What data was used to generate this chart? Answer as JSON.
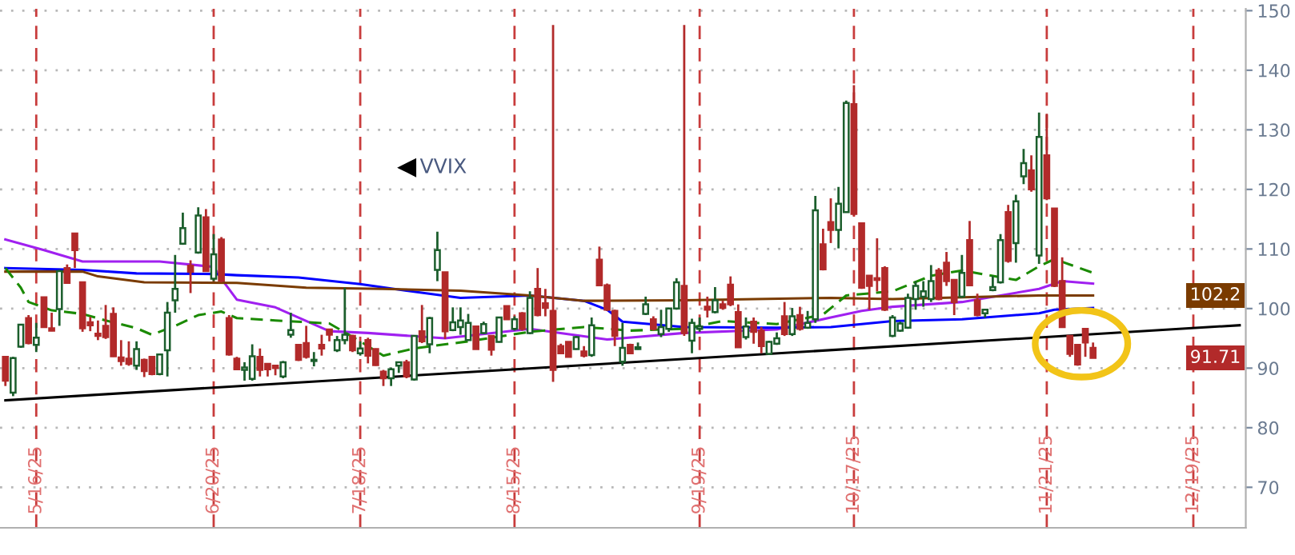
{
  "chart_data": {
    "type": "candlestick",
    "annotations": [
      "VVIX",
      {
        "text": "102.2",
        "y": 102.2
      },
      {
        "text": "91.71",
        "y": 91.71
      }
    ],
    "categories": [
      null,
      null,
      null,
      null,
      "5/16/25",
      null,
      null,
      null,
      null,
      null,
      null,
      null,
      null,
      null,
      null,
      null,
      null,
      null,
      null,
      null,
      null,
      null,
      null,
      null,
      null,
      null,
      null,
      "6/20/25",
      null,
      null,
      null,
      null,
      null,
      null,
      null,
      null,
      null,
      null,
      null,
      null,
      null,
      null,
      null,
      null,
      null,
      null,
      "7/18/25",
      null,
      null,
      null,
      null,
      null,
      null,
      null,
      null,
      null,
      null,
      null,
      null,
      null,
      null,
      null,
      null,
      null,
      null,
      null,
      "8/15/25",
      null,
      null,
      null,
      null,
      null,
      null,
      null,
      null,
      null,
      null,
      null,
      null,
      null,
      null,
      null,
      null,
      null,
      null,
      null,
      null,
      null,
      null,
      null,
      "9/19/25",
      null,
      null,
      null,
      null,
      null,
      null,
      null,
      null,
      null,
      null,
      null,
      null,
      null,
      null,
      null,
      null,
      null,
      null,
      null,
      "10/17/25",
      null,
      null,
      null,
      null,
      null,
      null,
      null,
      null,
      null,
      null,
      null,
      null,
      null,
      null,
      null,
      null,
      null,
      null,
      null,
      null,
      null,
      null,
      null,
      null,
      "11/21/25",
      null,
      null,
      null,
      null,
      null,
      null,
      null,
      null,
      null,
      null,
      null,
      null,
      null,
      null,
      null,
      null,
      null,
      null,
      "12/19/25",
      null,
      null,
      null,
      null,
      null,
      null
    ],
    "ylim": [
      63.2,
      150.3
    ],
    "yticks": [
      70,
      80,
      90,
      100,
      110,
      120,
      130,
      140,
      150
    ],
    "grid": true,
    "tick_labels": "xy",
    "series": [
      {
        "type": "line",
        "color": "#a020f0",
        "line_style": "solid",
        "values": [
          111.6,
          null,
          null,
          null,
          null,
          109.8,
          null,
          null,
          null,
          null,
          107.9,
          null,
          null,
          null,
          null,
          null,
          null,
          null,
          null,
          null,
          107.9,
          null,
          null,
          null,
          null,
          null,
          null,
          107,
          105,
          null,
          101.5,
          null,
          null,
          null,
          null,
          100.2,
          null,
          null,
          null,
          null,
          null,
          null,
          96.2,
          null,
          null,
          null,
          null,
          95.9,
          null,
          null,
          null,
          null,
          null,
          null,
          null,
          null,
          null,
          95,
          null,
          null,
          null,
          null,
          null,
          null,
          null,
          null,
          null,
          null,
          96.6,
          null,
          null,
          null,
          null,
          null,
          null,
          null,
          null,
          null,
          94.8,
          null,
          null,
          null,
          null,
          null,
          null,
          null,
          null,
          null,
          95.9,
          null,
          null,
          null,
          null,
          null,
          null,
          null,
          null,
          null,
          null,
          null,
          96.5,
          null,
          null,
          null,
          null,
          null,
          null,
          98.5,
          null,
          null,
          null,
          99.6,
          null,
          null,
          null,
          100.3,
          null,
          null,
          null,
          null,
          null,
          null,
          null,
          null,
          101.1,
          null,
          null,
          null,
          null,
          null,
          null,
          null,
          null,
          null,
          103.3,
          null,
          null,
          104.6,
          null,
          null,
          null,
          104.2,
          null,
          null,
          null,
          null,
          null,
          null,
          null,
          null,
          null,
          null,
          null,
          null,
          null,
          null,
          null,
          null,
          null,
          null,
          null
        ]
      },
      {
        "type": "line",
        "color": "#0000ff",
        "line_style": "solid",
        "values": [
          106.8,
          null,
          null,
          null,
          null,
          null,
          null,
          null,
          null,
          null,
          106.5,
          null,
          null,
          null,
          null,
          null,
          null,
          105.9,
          null,
          null,
          null,
          null,
          null,
          null,
          null,
          null,
          null,
          105.8,
          null,
          null,
          105.6,
          null,
          null,
          null,
          null,
          null,
          null,
          null,
          105.2,
          null,
          null,
          null,
          null,
          null,
          null,
          null,
          104.1,
          null,
          null,
          null,
          null,
          null,
          103,
          null,
          null,
          null,
          null,
          null,
          null,
          101.8,
          null,
          null,
          null,
          null,
          null,
          null,
          null,
          null,
          102.2,
          null,
          null,
          null,
          null,
          null,
          null,
          101.3,
          null,
          null,
          99.8,
          null,
          97.8,
          null,
          null,
          null,
          null,
          null,
          null,
          null,
          96.9,
          null,
          null,
          null,
          null,
          null,
          null,
          null,
          null,
          null,
          null,
          null,
          96.8,
          null,
          null,
          null,
          null,
          null,
          null,
          96.9,
          null,
          null,
          null,
          null,
          null,
          null,
          null,
          97.9,
          null,
          null,
          null,
          null,
          null,
          null,
          null,
          null,
          98.2,
          null,
          null,
          null,
          null,
          null,
          null,
          null,
          null,
          null,
          99.2,
          null,
          99.8,
          null,
          null,
          null,
          null,
          100.1,
          null,
          null,
          null,
          null,
          null,
          null,
          null,
          null,
          null,
          null,
          null,
          null,
          null,
          null,
          null,
          null,
          null,
          null,
          null
        ]
      },
      {
        "type": "line",
        "color": "#7a3b00",
        "line_style": "solid",
        "values": [
          106.2,
          null,
          null,
          null,
          null,
          null,
          null,
          null,
          null,
          null,
          106.2,
          null,
          105.4,
          null,
          null,
          null,
          null,
          null,
          104.4,
          null,
          null,
          null,
          null,
          null,
          null,
          null,
          null,
          null,
          null,
          null,
          104.3,
          null,
          null,
          null,
          null,
          null,
          null,
          null,
          null,
          103.5,
          null,
          null,
          null,
          null,
          null,
          null,
          null,
          null,
          null,
          103.3,
          null,
          null,
          null,
          null,
          null,
          null,
          null,
          null,
          null,
          103,
          null,
          null,
          null,
          null,
          null,
          null,
          null,
          null,
          102.2,
          null,
          null,
          null,
          null,
          null,
          null,
          101.3,
          null,
          null,
          null,
          null,
          null,
          null,
          null,
          null,
          null,
          null,
          null,
          null,
          101.4,
          null,
          null,
          null,
          null,
          null,
          null,
          null,
          null,
          null,
          null,
          null,
          null,
          null,
          null,
          null,
          null,
          null,
          null,
          101.8,
          null,
          null,
          null,
          null,
          null,
          null,
          null,
          101.6,
          null,
          null,
          null,
          null,
          null,
          null,
          null,
          null,
          null,
          null,
          null,
          null,
          null,
          null,
          null,
          null,
          null,
          null,
          102.2,
          null,
          null,
          null,
          null,
          null,
          null,
          102.2,
          null,
          null,
          null,
          null,
          null,
          null,
          null,
          null,
          null,
          null,
          null,
          null,
          null,
          null,
          null,
          null,
          null,
          null,
          null
        ]
      },
      {
        "type": "line",
        "color": "#1a8a00",
        "line_style": "dashed",
        "values": [
          106.8,
          null,
          103.5,
          101.1,
          null,
          null,
          99.7,
          null,
          null,
          null,
          99.1,
          null,
          null,
          98,
          null,
          null,
          null,
          96.7,
          null,
          95.6,
          null,
          null,
          97.1,
          null,
          null,
          98.9,
          null,
          null,
          99.5,
          null,
          98.4,
          null,
          null,
          null,
          null,
          98,
          null,
          null,
          null,
          null,
          null,
          null,
          97.5,
          null,
          null,
          null,
          94.5,
          null,
          null,
          92.1,
          null,
          null,
          null,
          93.3,
          null,
          null,
          null,
          null,
          null,
          null,
          94.5,
          null,
          null,
          null,
          null,
          null,
          null,
          null,
          96.1,
          null,
          null,
          null,
          null,
          null,
          null,
          96.9,
          null,
          null,
          null,
          null,
          null,
          96.3,
          null,
          null,
          null,
          null,
          null,
          null,
          96.6,
          null,
          null,
          null,
          null,
          97.9,
          null,
          null,
          null,
          null,
          null,
          null,
          97.4,
          null,
          null,
          null,
          null,
          null,
          99,
          null,
          null,
          102.2,
          null,
          null,
          null,
          null,
          null,
          102.9,
          null,
          null,
          null,
          null,
          105.5,
          null,
          null,
          null,
          106.4,
          null,
          null,
          null,
          null,
          null,
          null,
          104.8,
          null,
          null,
          107.1,
          null,
          108.3,
          null,
          null,
          null,
          null,
          106,
          null,
          null,
          null,
          null,
          null,
          null,
          null,
          null,
          null,
          null,
          null,
          null,
          null,
          null,
          null,
          null,
          null,
          null,
          null
        ]
      },
      {
        "type": "line",
        "color": "#000000",
        "line_style": "solid",
        "values": [
          84.6,
          null,
          null,
          null,
          null,
          null,
          null,
          null,
          null,
          null,
          null,
          null,
          null,
          null,
          null,
          null,
          null,
          null,
          null,
          null,
          null,
          null,
          null,
          null,
          null,
          null,
          null,
          null,
          null,
          null,
          null,
          null,
          null,
          null,
          null,
          null,
          null,
          null,
          null,
          null,
          null,
          null,
          null,
          null,
          null,
          null,
          null,
          null,
          null,
          null,
          null,
          null,
          null,
          null,
          null,
          null,
          null,
          null,
          null,
          null,
          null,
          null,
          null,
          null,
          null,
          null,
          null,
          null,
          null,
          null,
          null,
          null,
          null,
          null,
          null,
          null,
          null,
          null,
          null,
          null,
          null,
          null,
          null,
          null,
          null,
          null,
          null,
          null,
          null,
          null,
          null,
          null,
          null,
          null,
          null,
          null,
          null,
          null,
          null,
          null,
          null,
          null,
          null,
          null,
          null,
          null,
          null,
          null,
          null,
          null,
          null,
          null,
          null,
          null,
          null,
          null,
          null,
          null,
          null,
          null,
          null,
          null,
          null,
          null,
          null,
          null,
          null,
          null,
          null,
          null,
          null,
          null,
          null,
          null,
          null,
          null,
          null,
          null,
          null,
          null,
          null,
          null,
          null,
          null,
          null,
          null,
          null,
          null,
          null,
          null,
          null,
          null,
          null,
          null,
          null,
          null,
          null,
          null,
          null,
          null,
          97.2
        ]
      },
      {
        "ohlc": [
          [
            91.9,
            91.9,
            87.0,
            87.9
          ],
          [
            85.9,
            91.9,
            85.3,
            91.7
          ],
          [
            93.6,
            97.3,
            93.4,
            97.3
          ],
          [
            98.4,
            98.9,
            94.0,
            94.2
          ],
          [
            93.9,
            97.6,
            92.7,
            95.1
          ],
          [
            101.9,
            101.9,
            96.9,
            96.9
          ],
          [
            96.7,
            99.3,
            96.2,
            96.3
          ],
          [
            99.9,
            106.5,
            97.1,
            106.3
          ],
          [
            106.8,
            107.4,
            104.3,
            104.3
          ],
          [
            112.6,
            112.6,
            106.8,
            109.8
          ],
          [
            104.4,
            104.4,
            96.1,
            96.7
          ],
          [
            97.7,
            98.6,
            96.2,
            97.2
          ],
          [
            95.8,
            98.0,
            94.7,
            95.4
          ],
          [
            97.1,
            100.6,
            94.9,
            95.2
          ],
          [
            99.1,
            100.2,
            91.9,
            92.0
          ],
          [
            91.8,
            94.7,
            90.4,
            91.2
          ],
          [
            91.6,
            94.5,
            90.4,
            90.7
          ],
          [
            90.4,
            94.5,
            89.7,
            93.2
          ],
          [
            91.4,
            91.6,
            88.5,
            89.5
          ],
          [
            91.9,
            92.0,
            88.8,
            89.0
          ],
          [
            89.0,
            92.3,
            88.8,
            92.3
          ],
          [
            93.0,
            101.1,
            88.6,
            99.3
          ],
          [
            101.4,
            109.0,
            99.3,
            103.3
          ],
          [
            110.9,
            116.1,
            110.7,
            113.5
          ],
          [
            107.2,
            108.1,
            102.6,
            106.2
          ],
          [
            109.4,
            117.0,
            109.2,
            115.6
          ],
          [
            115.3,
            116.7,
            106.2,
            106.3
          ],
          [
            105.0,
            112.5,
            104.6,
            109.1
          ],
          [
            111.6,
            112.0,
            104.4,
            104.7
          ],
          [
            98.4,
            98.9,
            92.1,
            92.3
          ],
          [
            91.6,
            91.9,
            89.7,
            89.8
          ],
          [
            89.7,
            91.0,
            87.9,
            90.1
          ],
          [
            88.2,
            94.0,
            87.9,
            92.0
          ],
          [
            91.9,
            93.3,
            88.6,
            89.7
          ],
          [
            90.7,
            90.7,
            88.6,
            89.8
          ],
          [
            90.4,
            90.5,
            88.8,
            90.0
          ],
          [
            88.6,
            91.2,
            88.3,
            91.0
          ],
          [
            95.6,
            99.3,
            95.1,
            96.4
          ],
          [
            93.9,
            93.9,
            91.2,
            91.4
          ],
          [
            94.2,
            97.1,
            91.6,
            91.9
          ],
          [
            91.2,
            92.7,
            90.3,
            91.4
          ],
          [
            93.9,
            95.6,
            92.1,
            93.3
          ],
          [
            96.5,
            96.5,
            94.5,
            95.6
          ],
          [
            93.0,
            95.4,
            92.7,
            94.7
          ],
          [
            94.7,
            103.5,
            94.0,
            95.6
          ],
          [
            95.4,
            95.6,
            92.7,
            93.0
          ],
          [
            92.5,
            94.5,
            92.1,
            93.3
          ],
          [
            94.7,
            95.1,
            90.8,
            92.1
          ],
          [
            93.2,
            93.3,
            90.4,
            90.5
          ],
          [
            89.4,
            89.7,
            87.0,
            88.3
          ],
          [
            88.3,
            90.1,
            87.0,
            89.8
          ],
          [
            90.4,
            91.0,
            89.2,
            91.0
          ],
          [
            91.0,
            91.4,
            88.3,
            88.6
          ],
          [
            88.1,
            95.4,
            87.9,
            95.4
          ],
          [
            96.2,
            100.6,
            94.2,
            94.5
          ],
          [
            94.0,
            98.6,
            92.5,
            98.4
          ],
          [
            106.5,
            112.9,
            104.6,
            109.8
          ],
          [
            106.1,
            106.1,
            94.9,
            96.2
          ],
          [
            96.4,
            100.2,
            96.2,
            97.7
          ],
          [
            96.9,
            100.2,
            95.6,
            98.0
          ],
          [
            94.7,
            99.1,
            94.6,
            97.6
          ],
          [
            97.0,
            97.0,
            93.2,
            93.2
          ],
          [
            95.9,
            97.8,
            95.7,
            97.4
          ],
          [
            95.4,
            95.4,
            92.1,
            93.1
          ],
          [
            94.4,
            98.5,
            94.3,
            98.5
          ],
          [
            100.4,
            100.4,
            98.1,
            98.2
          ],
          [
            96.6,
            98.7,
            96.3,
            98.2
          ],
          [
            99.2,
            99.4,
            96.3,
            96.6
          ],
          [
            95.9,
            102.9,
            95.7,
            101.8
          ],
          [
            103.3,
            106.8,
            98.7,
            98.9
          ],
          [
            100.9,
            103.3,
            98.7,
            100.1
          ],
          [
            99.6,
            147.6,
            87.7,
            89.7
          ],
          [
            93.7,
            94.1,
            92.4,
            92.5
          ],
          [
            94.4,
            94.4,
            91.8,
            91.9
          ],
          [
            93.2,
            95.4,
            93.1,
            95.2
          ],
          [
            92.8,
            93.7,
            91.8,
            92.1
          ],
          [
            92.2,
            98.5,
            91.9,
            97.2
          ],
          [
            108.2,
            110.4,
            103.8,
            103.9
          ],
          [
            103.9,
            104.2,
            99.6,
            99.8
          ],
          [
            99.6,
            99.8,
            93.7,
            95.4
          ],
          [
            91.1,
            97.6,
            90.4,
            93.4
          ],
          [
            93.9,
            94.1,
            92.4,
            92.5
          ],
          [
            93.2,
            94.3,
            93.1,
            93.5
          ],
          [
            99.1,
            102.0,
            98.9,
            100.7
          ],
          [
            98.2,
            98.7,
            96.3,
            96.6
          ],
          [
            95.7,
            99.8,
            95.2,
            96.9
          ],
          [
            96.6,
            100.0,
            96.1,
            100.0
          ],
          [
            100.0,
            105.1,
            99.8,
            104.4
          ],
          [
            103.8,
            147.6,
            95.4,
            95.9
          ],
          [
            94.6,
            98.3,
            92.5,
            97.6
          ],
          [
            96.6,
            98.5,
            96.1,
            97.0
          ],
          [
            100.3,
            102.0,
            98.5,
            99.8
          ],
          [
            99.4,
            103.6,
            99.2,
            101.4
          ],
          [
            100.7,
            101.3,
            99.8,
            100.1
          ],
          [
            104.0,
            105.4,
            100.4,
            100.7
          ],
          [
            99.4,
            100.7,
            93.4,
            93.5
          ],
          [
            95.2,
            98.5,
            94.8,
            97.0
          ],
          [
            97.8,
            98.5,
            94.1,
            96.1
          ],
          [
            96.3,
            96.9,
            92.5,
            93.7
          ],
          [
            92.4,
            94.6,
            92.2,
            94.4
          ],
          [
            94.1,
            96.0,
            93.9,
            95.0
          ],
          [
            98.7,
            101.1,
            95.4,
            95.7
          ],
          [
            95.7,
            100.1,
            95.4,
            98.7
          ],
          [
            98.9,
            100.3,
            96.3,
            96.6
          ],
          [
            96.8,
            99.6,
            96.6,
            97.6
          ],
          [
            98.2,
            118.9,
            97.6,
            116.5
          ],
          [
            110.8,
            113.4,
            106.4,
            106.6
          ],
          [
            114.5,
            118.5,
            111.0,
            113.2
          ],
          [
            113.2,
            120.4,
            110.1,
            117.6
          ],
          [
            116.2,
            134.9,
            116.1,
            134.5
          ],
          [
            134.3,
            137.5,
            115.6,
            115.9
          ],
          [
            114.3,
            114.3,
            103.3,
            103.5
          ],
          [
            105.5,
            105.5,
            99.8,
            103.8
          ],
          [
            105.1,
            111.8,
            102.9,
            104.8
          ],
          [
            106.8,
            107.1,
            99.6,
            99.8
          ],
          [
            95.4,
            98.9,
            95.2,
            98.5
          ],
          [
            96.3,
            97.8,
            96.1,
            97.5
          ],
          [
            96.8,
            102.5,
            96.6,
            101.8
          ],
          [
            101.6,
            104.6,
            99.8,
            103.8
          ],
          [
            102.0,
            104.6,
            100.3,
            102.9
          ],
          [
            101.6,
            107.3,
            101.1,
            104.6
          ],
          [
            106.4,
            106.8,
            101.4,
            101.6
          ],
          [
            107.7,
            109.5,
            103.8,
            104.6
          ],
          [
            104.8,
            104.8,
            98.9,
            101.1
          ],
          [
            102.0,
            109.0,
            101.8,
            106.0
          ],
          [
            111.5,
            114.7,
            103.8,
            103.9
          ],
          [
            101.4,
            102.5,
            98.7,
            98.9
          ],
          [
            99.2,
            99.8,
            98.5,
            99.8
          ],
          [
            103.1,
            105.5,
            102.9,
            103.6
          ],
          [
            104.4,
            112.5,
            104.2,
            111.5
          ],
          [
            116.2,
            117.4,
            107.7,
            108.0
          ],
          [
            111.0,
            119.1,
            107.7,
            118.0
          ],
          [
            122.2,
            126.8,
            120.9,
            124.4
          ],
          [
            123.2,
            125.7,
            119.6,
            120.0
          ],
          [
            108.9,
            132.9,
            107.5,
            128.8
          ],
          [
            125.7,
            132.7,
            118.2,
            118.5
          ],
          [
            116.8,
            116.8,
            103.6,
            103.8
          ],
          [
            104.6,
            108.6,
            96.8,
            96.9
          ],
          [
            95.4,
            95.4,
            91.9,
            92.4
          ],
          [
            93.9,
            93.9,
            90.4,
            90.6
          ],
          [
            96.6,
            96.6,
            91.9,
            94.3
          ],
          [
            93.4,
            94.3,
            91.7,
            91.71
          ],
          null,
          null,
          null,
          null,
          null,
          null,
          null,
          null,
          null,
          null,
          null,
          null,
          null,
          null,
          null,
          null,
          null,
          null,
          null
        ],
        "colors": [
          "#b22a2a",
          "#1b5e2c",
          "#1b5e2c",
          "#b22a2a",
          "#1b5e2c",
          "#b22a2a",
          "#b22a2a",
          "#1b5e2c",
          "#b22a2a",
          "#b22a2a",
          "#b22a2a",
          "#b22a2a",
          "#b22a2a",
          "#b22a2a",
          "#b22a2a",
          "#b22a2a",
          "#b22a2a",
          "#1b5e2c",
          "#b22a2a",
          "#b22a2a",
          "#1b5e2c",
          "#1b5e2c",
          "#1b5e2c",
          "#1b5e2c",
          "#b22a2a",
          "#1b5e2c",
          "#b22a2a",
          "#1b5e2c",
          "#b22a2a",
          "#b22a2a",
          "#b22a2a",
          "#1b5e2c",
          "#1b5e2c",
          "#b22a2a",
          "#b22a2a",
          "#b22a2a",
          "#1b5e2c",
          "#1b5e2c",
          "#b22a2a",
          "#b22a2a",
          "#1b5e2c",
          "#b22a2a",
          "#b22a2a",
          "#1b5e2c",
          "#1b5e2c",
          "#b22a2a",
          "#1b5e2c",
          "#b22a2a",
          "#b22a2a",
          "#b22a2a",
          "#1b5e2c",
          "#1b5e2c",
          "#b22a2a",
          "#1b5e2c",
          "#b22a2a",
          "#1b5e2c",
          "#1b5e2c",
          "#b22a2a",
          "#1b5e2c",
          "#1b5e2c",
          "#1b5e2c",
          "#b22a2a",
          "#1b5e2c",
          "#b22a2a",
          "#1b5e2c",
          "#b22a2a",
          "#1b5e2c",
          "#b22a2a",
          "#1b5e2c",
          "#b22a2a",
          "#b22a2a",
          "#b22a2a",
          "#b22a2a",
          "#b22a2a",
          "#1b5e2c",
          "#b22a2a",
          "#1b5e2c",
          "#b22a2a",
          "#b22a2a",
          "#b22a2a",
          "#1b5e2c",
          "#b22a2a",
          "#1b5e2c",
          "#1b5e2c",
          "#b22a2a",
          "#1b5e2c",
          "#1b5e2c",
          "#1b5e2c",
          "#b22a2a",
          "#1b5e2c",
          "#1b5e2c",
          "#b22a2a",
          "#1b5e2c",
          "#b22a2a",
          "#b22a2a",
          "#b22a2a",
          "#1b5e2c",
          "#b22a2a",
          "#b22a2a",
          "#1b5e2c",
          "#1b5e2c",
          "#b22a2a",
          "#1b5e2c",
          "#b22a2a",
          "#1b5e2c",
          "#1b5e2c",
          "#b22a2a",
          "#b22a2a",
          "#1b5e2c",
          "#1b5e2c",
          "#b22a2a",
          "#b22a2a",
          "#b22a2a",
          "#b22a2a",
          "#b22a2a",
          "#1b5e2c",
          "#1b5e2c",
          "#1b5e2c",
          "#1b5e2c",
          "#1b5e2c",
          "#1b5e2c",
          "#b22a2a",
          "#b22a2a",
          "#b22a2a",
          "#1b5e2c",
          "#b22a2a",
          "#b22a2a",
          "#1b5e2c",
          "#1b5e2c",
          "#1b5e2c",
          "#b22a2a",
          "#1b5e2c",
          "#1b5e2c",
          "#b22a2a",
          "#1b5e2c",
          "#b22a2a",
          "#b22a2a",
          "#b22a2a",
          "#b22a2a",
          "#b22a2a",
          "#b22a2a",
          "#b22a2a",
          null,
          null,
          null,
          null,
          null,
          null,
          null,
          null,
          null,
          null,
          null,
          null,
          null,
          null,
          null,
          null,
          null,
          null,
          null
        ]
      }
    ]
  }
}
